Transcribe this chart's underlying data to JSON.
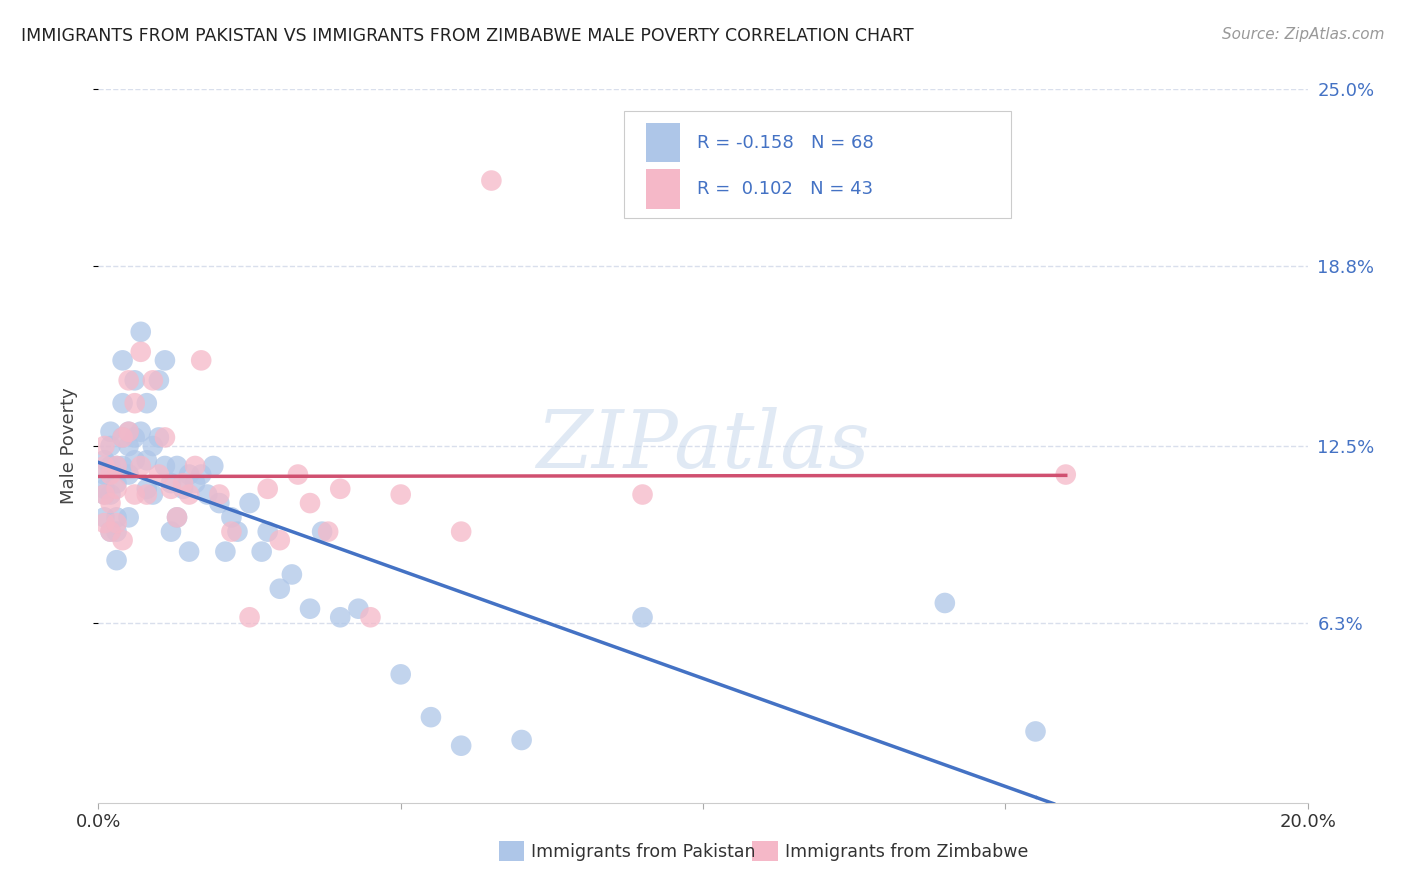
{
  "title": "IMMIGRANTS FROM PAKISTAN VS IMMIGRANTS FROM ZIMBABWE MALE POVERTY CORRELATION CHART",
  "source_text": "Source: ZipAtlas.com",
  "xlabel_pakistan": "Immigrants from Pakistan",
  "xlabel_zimbabwe": "Immigrants from Zimbabwe",
  "ylabel": "Male Poverty",
  "xlim": [
    0.0,
    0.2
  ],
  "ylim": [
    0.0,
    0.25
  ],
  "ytick_labels": [
    "6.3%",
    "12.5%",
    "18.8%",
    "25.0%"
  ],
  "ytick_vals": [
    0.063,
    0.125,
    0.188,
    0.25
  ],
  "pakistan_color": "#aec6e8",
  "zimbabwe_color": "#f5b8c8",
  "pakistan_line_color": "#4472c4",
  "zimbabwe_line_color": "#d05070",
  "pakistan_R": -0.158,
  "pakistan_N": 68,
  "zimbabwe_R": 0.102,
  "zimbabwe_N": 43,
  "pakistan_x": [
    0.001,
    0.001,
    0.001,
    0.001,
    0.001,
    0.002,
    0.002,
    0.002,
    0.002,
    0.002,
    0.003,
    0.003,
    0.003,
    0.003,
    0.003,
    0.004,
    0.004,
    0.004,
    0.004,
    0.005,
    0.005,
    0.005,
    0.005,
    0.006,
    0.006,
    0.006,
    0.007,
    0.007,
    0.008,
    0.008,
    0.008,
    0.009,
    0.009,
    0.01,
    0.01,
    0.011,
    0.011,
    0.012,
    0.012,
    0.013,
    0.013,
    0.014,
    0.015,
    0.015,
    0.016,
    0.017,
    0.018,
    0.019,
    0.02,
    0.021,
    0.022,
    0.023,
    0.025,
    0.027,
    0.028,
    0.03,
    0.032,
    0.035,
    0.037,
    0.04,
    0.043,
    0.05,
    0.055,
    0.06,
    0.07,
    0.09,
    0.14,
    0.155
  ],
  "pakistan_y": [
    0.12,
    0.115,
    0.11,
    0.1,
    0.108,
    0.13,
    0.118,
    0.125,
    0.108,
    0.095,
    0.118,
    0.112,
    0.1,
    0.095,
    0.085,
    0.14,
    0.128,
    0.118,
    0.155,
    0.13,
    0.115,
    0.1,
    0.125,
    0.148,
    0.128,
    0.12,
    0.165,
    0.13,
    0.14,
    0.12,
    0.11,
    0.125,
    0.108,
    0.148,
    0.128,
    0.155,
    0.118,
    0.112,
    0.095,
    0.118,
    0.1,
    0.11,
    0.115,
    0.088,
    0.112,
    0.115,
    0.108,
    0.118,
    0.105,
    0.088,
    0.1,
    0.095,
    0.105,
    0.088,
    0.095,
    0.075,
    0.08,
    0.068,
    0.095,
    0.065,
    0.068,
    0.045,
    0.03,
    0.02,
    0.022,
    0.065,
    0.07,
    0.025
  ],
  "zimbabwe_x": [
    0.001,
    0.001,
    0.001,
    0.001,
    0.002,
    0.002,
    0.002,
    0.003,
    0.003,
    0.003,
    0.004,
    0.004,
    0.005,
    0.005,
    0.006,
    0.006,
    0.007,
    0.007,
    0.008,
    0.009,
    0.01,
    0.011,
    0.012,
    0.013,
    0.014,
    0.015,
    0.016,
    0.017,
    0.02,
    0.022,
    0.025,
    0.028,
    0.03,
    0.033,
    0.035,
    0.038,
    0.04,
    0.045,
    0.05,
    0.06,
    0.065,
    0.09,
    0.16
  ],
  "zimbabwe_y": [
    0.108,
    0.118,
    0.098,
    0.125,
    0.105,
    0.115,
    0.095,
    0.118,
    0.098,
    0.11,
    0.128,
    0.092,
    0.148,
    0.13,
    0.14,
    0.108,
    0.118,
    0.158,
    0.108,
    0.148,
    0.115,
    0.128,
    0.11,
    0.1,
    0.112,
    0.108,
    0.118,
    0.155,
    0.108,
    0.095,
    0.065,
    0.11,
    0.092,
    0.115,
    0.105,
    0.095,
    0.11,
    0.065,
    0.108,
    0.095,
    0.218,
    0.108,
    0.115
  ],
  "watermark": "ZIPatlas",
  "background_color": "#ffffff",
  "grid_color": "#d0d8e8"
}
